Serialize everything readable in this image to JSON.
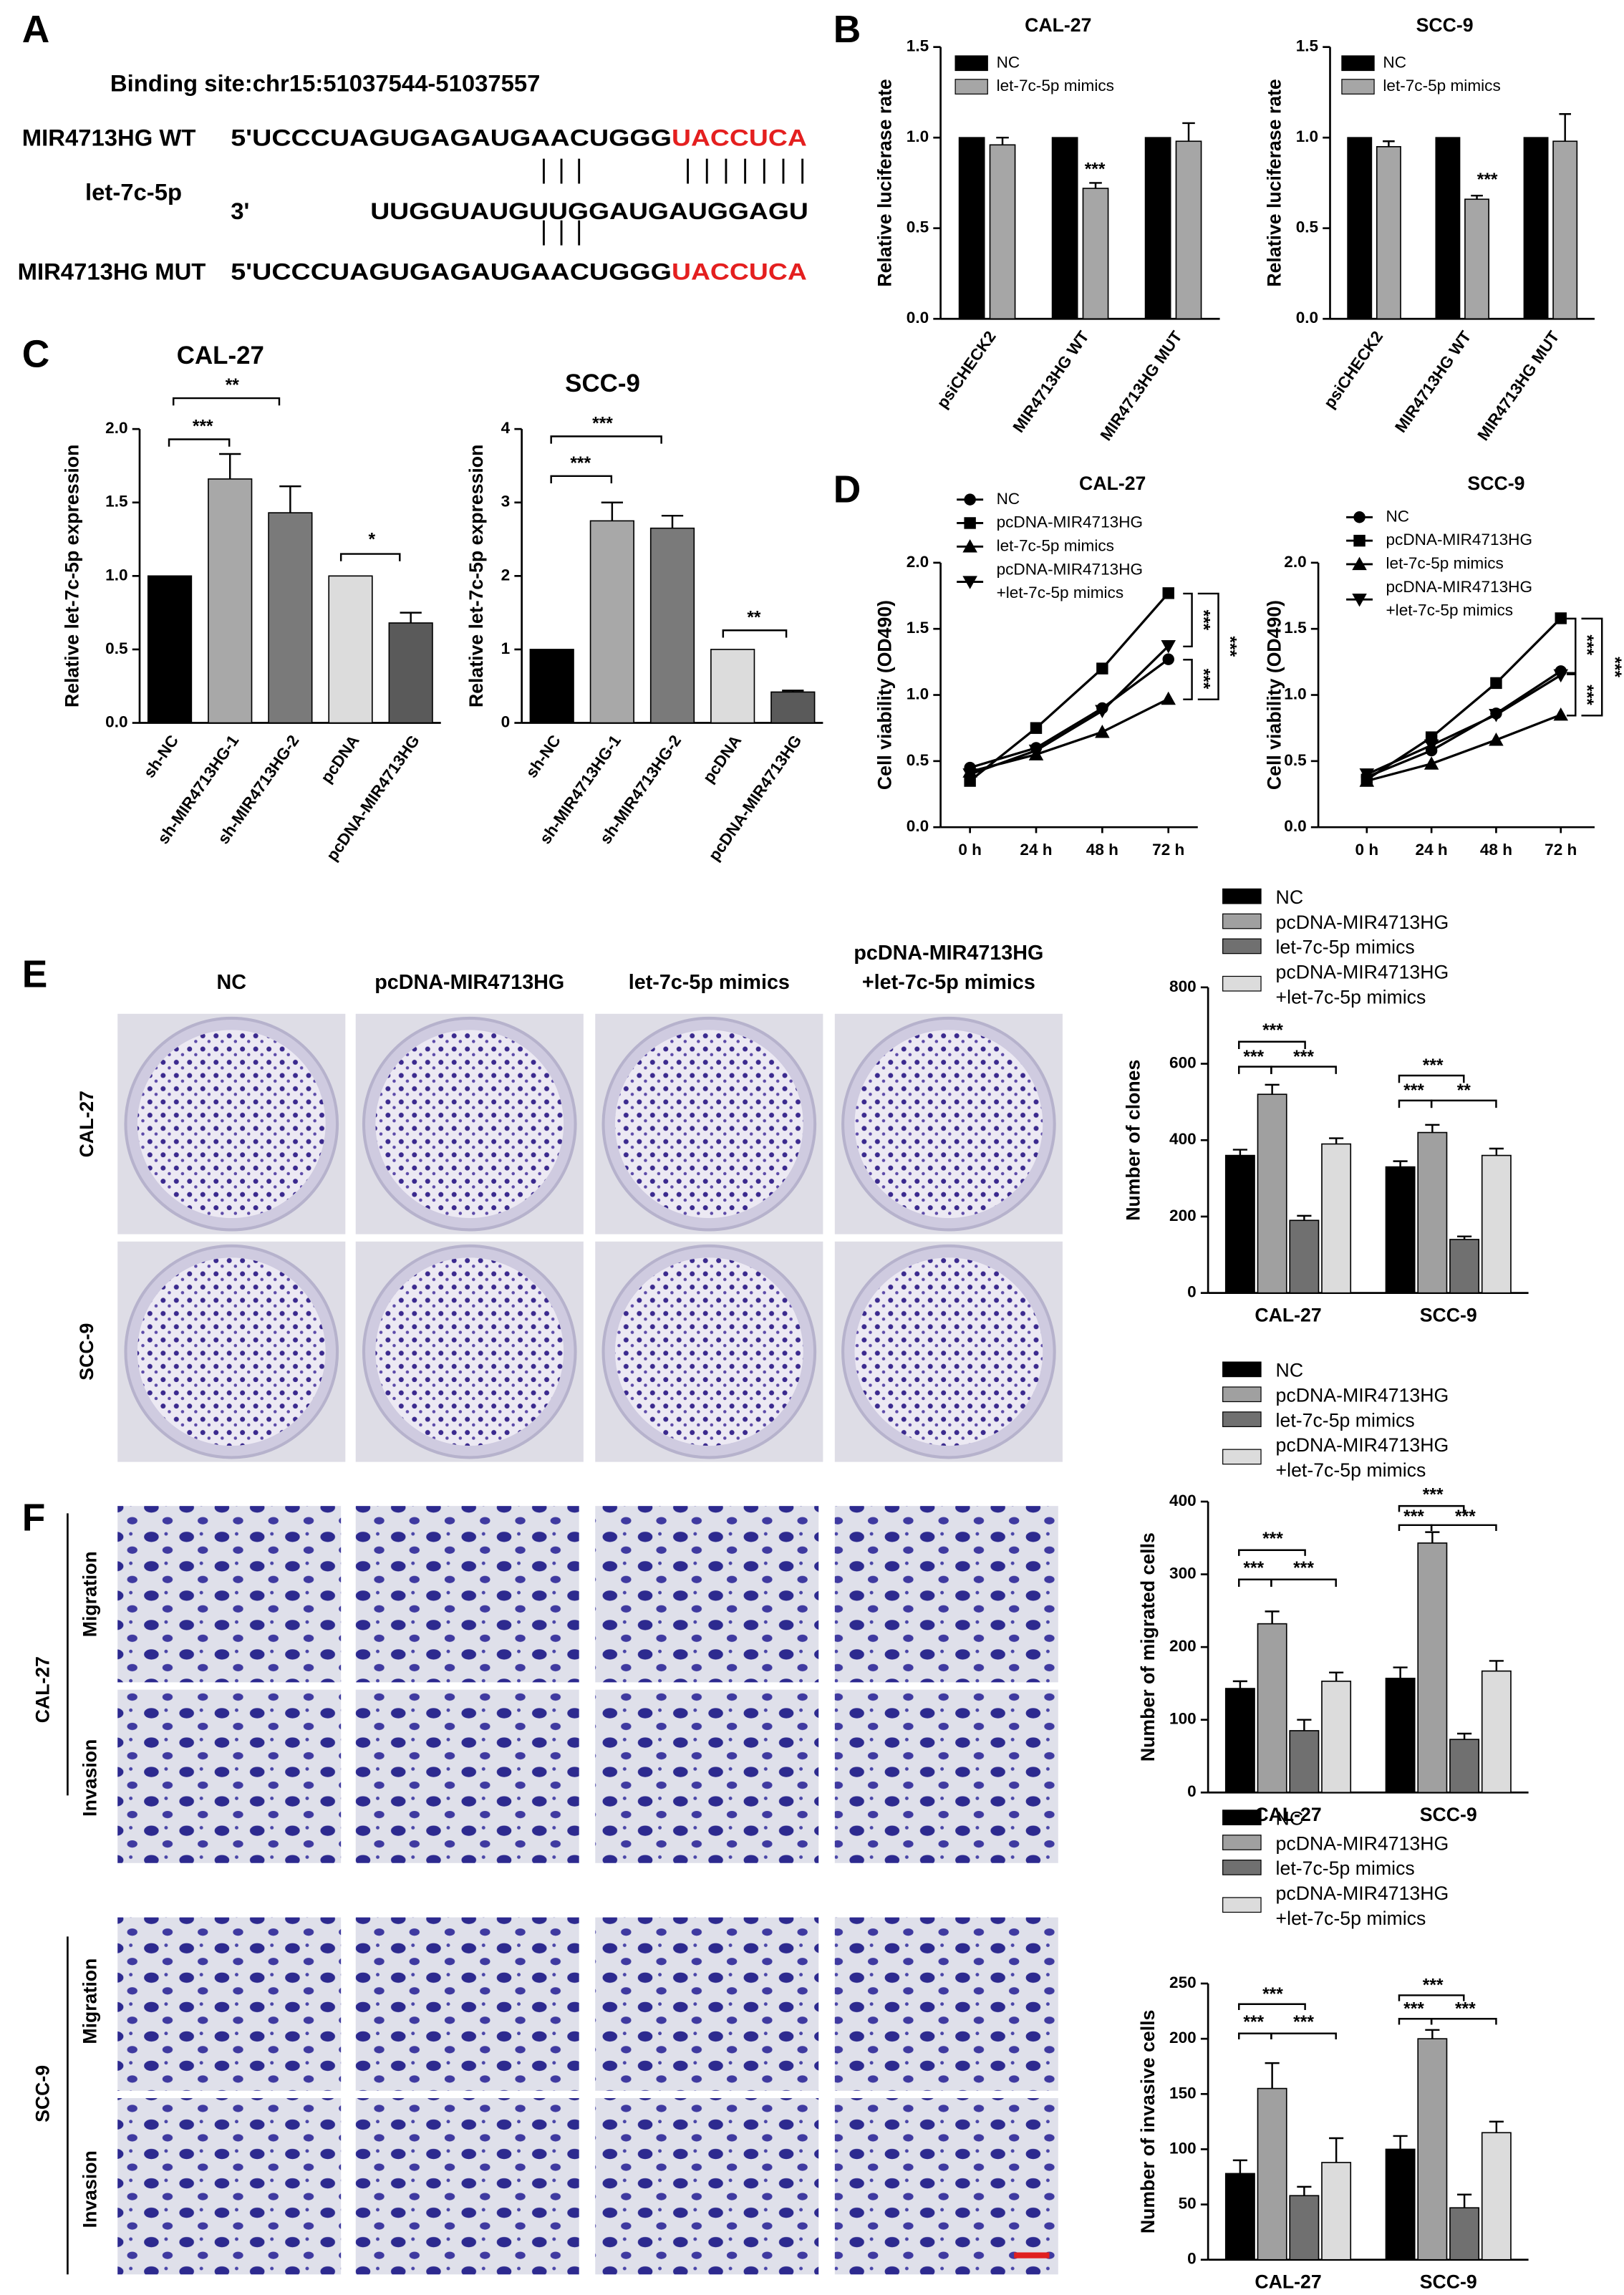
{
  "panel_labels": [
    "A",
    "B",
    "C",
    "D",
    "E",
    "F"
  ],
  "binding": {
    "title": "Binding site:chr15:51037544-51037557",
    "rows": [
      {
        "label": "MIR4713HG WT",
        "seq_a": "5'UCCCUAGUGAGAUGAACUGGG",
        "seq_b": "UACCUCA",
        "seq_b_color": "#e41f1f"
      },
      {
        "label": "let-7c-5p",
        "seq_a": "3'",
        "seq_b": "UUGGUAUGUUGGAUGAUGGAGU",
        "seq_b_color": "#000000"
      },
      {
        "label": "MIR4713HG MUT",
        "seq_a": "5'UCCCUAGUGAGAUGAACUGGG",
        "seq_b": "UACCUCA",
        "seq_b_color": "#e41f1f"
      }
    ]
  },
  "images": {
    "columns": [
      "NC",
      "pcDNA-MIR4713HG",
      "let-7c-5p mimics",
      "pcDNA-MIR4713HG\n+let-7c-5p mimics"
    ],
    "cell_lines": [
      "CAL-27",
      "SCC-9"
    ],
    "assays": [
      "Migration",
      "Invasion"
    ]
  },
  "chart_data": [
    {
      "type": "bar",
      "title": "CAL-27",
      "y_label": "Relative luciferase rate",
      "categories": [
        "psiCHECK2",
        "MIR4713HG WT",
        "MIR4713HG MUT"
      ],
      "series": [
        {
          "name": "NC",
          "color": "#000000",
          "values": [
            1,
            1,
            1
          ]
        },
        {
          "name": "let-7c-5p mimics",
          "color": "#a6a6a6",
          "values": [
            0.96,
            0.72,
            0.98
          ],
          "errors": [
            0.04,
            0.03,
            0.1
          ]
        }
      ],
      "ylim": [
        0,
        1.5
      ],
      "yticks": [
        {
          "value": 0,
          "label": "0.0"
        },
        0.5,
        {
          "value": 1,
          "label": "1.0"
        },
        1.5
      ],
      "annotations": [
        "***"
      ]
    },
    {
      "type": "bar",
      "title": "SCC-9",
      "y_label": "Relative luciferase rate",
      "categories": [
        "psiCHECK2",
        "MIR4713HG WT",
        "MIR4713HG MUT"
      ],
      "series": [
        {
          "name": "NC",
          "color": "#000000",
          "values": [
            1,
            1,
            1
          ]
        },
        {
          "name": "let-7c-5p mimics",
          "color": "#a6a6a6",
          "values": [
            0.95,
            0.66,
            0.98
          ],
          "errors": [
            0.03,
            0.02,
            0.15
          ]
        }
      ],
      "ylim": [
        0,
        1.5
      ],
      "yticks": [
        {
          "value": 0,
          "label": "0.0"
        },
        0.5,
        {
          "value": 1,
          "label": "1.0"
        },
        1.5
      ],
      "annotations": [
        "***"
      ]
    },
    {
      "type": "bar",
      "title": "CAL-27",
      "y_label": "Relative let-7c-5p expression",
      "categories": [
        "sh-NC",
        "sh-MIR4713HG-1",
        "sh-MIR4713HG-2",
        "pcDNA",
        "pcDNA-MIR4713HG"
      ],
      "values": [
        1,
        1.66,
        1.43,
        1,
        0.68
      ],
      "errors": [
        null,
        0.17,
        0.18,
        null,
        0.07
      ],
      "colors": [
        "#000000",
        "#a8a8a8",
        "#7a7a7a",
        "#dcdcdc",
        "#5a5a5a"
      ],
      "ylim": [
        0,
        2
      ],
      "yticks": [
        {
          "value": 0,
          "label": "0.0"
        },
        0.5,
        {
          "value": 1,
          "label": "1.0"
        },
        1.5,
        {
          "value": 2,
          "label": "2.0"
        }
      ],
      "annotations": [
        "***",
        "**",
        "*"
      ]
    },
    {
      "type": "bar",
      "title": "SCC-9",
      "y_label": "Relative let-7c-5p expression",
      "categories": [
        "sh-NC",
        "sh-MIR4713HG-1",
        "sh-MIR4713HG-2",
        "pcDNA",
        "pcDNA-MIR4713HG"
      ],
      "values": [
        1,
        2.75,
        2.65,
        1,
        0.42
      ],
      "errors": [
        null,
        0.25,
        0.17,
        null,
        0.02
      ],
      "colors": [
        "#000000",
        "#a8a8a8",
        "#7a7a7a",
        "#dcdcdc",
        "#5a5a5a"
      ],
      "ylim": [
        0,
        4
      ],
      "yticks": [
        0,
        1,
        2,
        3,
        4
      ],
      "annotations": [
        "***",
        "***",
        "**"
      ]
    },
    {
      "type": "line",
      "title": "CAL-27",
      "y_label": "Cell viability (OD490)",
      "categories": [
        "0 h",
        "24 h",
        "48 h",
        "72 h"
      ],
      "series": [
        {
          "name": "NC",
          "marker": "circle",
          "color": "#000000",
          "values": [
            0.45,
            0.6,
            0.9,
            1.27
          ]
        },
        {
          "name": "pcDNA-MIR4713HG",
          "marker": "square",
          "color": "#000000",
          "values": [
            0.35,
            0.75,
            1.2,
            1.77
          ]
        },
        {
          "name": "let-7c-5p mimics",
          "marker": "triangle",
          "color": "#000000",
          "values": [
            0.42,
            0.55,
            0.72,
            0.97
          ]
        },
        {
          "name": "pcDNA-MIR4713HG\n+let-7c-5p mimics",
          "marker": "triangle-down",
          "color": "#000000",
          "values": [
            0.4,
            0.58,
            0.88,
            1.37
          ]
        }
      ],
      "ylim": [
        0,
        2
      ],
      "yticks": [
        {
          "value": 0,
          "label": "0.0"
        },
        0.5,
        {
          "value": 1,
          "label": "1.0"
        },
        1.5,
        {
          "value": 2,
          "label": "2.0"
        }
      ],
      "annotations": [
        "***",
        "***",
        "***"
      ]
    },
    {
      "type": "line",
      "title": "SCC-9",
      "y_label": "Cell viability (OD490)",
      "categories": [
        "0 h",
        "24 h",
        "48 h",
        "72 h"
      ],
      "series": [
        {
          "name": "NC",
          "marker": "circle",
          "color": "#000000",
          "values": [
            0.38,
            0.58,
            0.86,
            1.18
          ]
        },
        {
          "name": "pcDNA-MIR4713HG",
          "marker": "square",
          "color": "#000000",
          "values": [
            0.36,
            0.68,
            1.09,
            1.58
          ]
        },
        {
          "name": "let-7c-5p mimics",
          "marker": "triangle",
          "color": "#000000",
          "values": [
            0.35,
            0.48,
            0.66,
            0.85
          ]
        },
        {
          "name": "pcDNA-MIR4713HG\n+let-7c-5p mimics",
          "marker": "triangle-down",
          "color": "#000000",
          "values": [
            0.4,
            0.62,
            0.85,
            1.15
          ]
        }
      ],
      "ylim": [
        0,
        2
      ],
      "yticks": [
        {
          "value": 0,
          "label": "0.0"
        },
        0.5,
        {
          "value": 1,
          "label": "1.0"
        },
        1.5,
        {
          "value": 2,
          "label": "2.0"
        }
      ],
      "annotations": [
        "***",
        "***",
        "***"
      ]
    },
    {
      "type": "bar",
      "y_label": "Number of clones",
      "categories": [
        "CAL-27",
        "SCC-9"
      ],
      "series": [
        {
          "name": "NC",
          "color": "#000000",
          "values": [
            360,
            330
          ],
          "errors": [
            15,
            15
          ]
        },
        {
          "name": "pcDNA-MIR4713HG",
          "color": "#a0a0a0",
          "values": [
            520,
            420
          ],
          "errors": [
            25,
            20
          ]
        },
        {
          "name": "let-7c-5p mimics",
          "color": "#707070",
          "values": [
            190,
            140
          ],
          "errors": [
            12,
            8
          ]
        },
        {
          "name": "pcDNA-MIR4713HG\n+let-7c-5p mimics",
          "color": "#dcdcdc",
          "values": [
            390,
            360
          ],
          "errors": [
            15,
            18
          ]
        }
      ],
      "ylim": [
        0,
        800
      ],
      "yticks": [
        0,
        200,
        400,
        600,
        800
      ],
      "annotations": [
        "***",
        "***",
        "***",
        "***",
        "***",
        "**"
      ]
    },
    {
      "type": "bar",
      "y_label": "Number of migrated cells",
      "categories": [
        "CAL-27",
        "SCC-9"
      ],
      "series": [
        {
          "name": "NC",
          "color": "#000000",
          "values": [
            143,
            157
          ],
          "errors": [
            10,
            15
          ]
        },
        {
          "name": "pcDNA-MIR4713HG",
          "color": "#a0a0a0",
          "values": [
            232,
            343
          ],
          "errors": [
            17,
            15
          ]
        },
        {
          "name": "let-7c-5p mimics",
          "color": "#707070",
          "values": [
            85,
            73
          ],
          "errors": [
            15,
            8
          ]
        },
        {
          "name": "pcDNA-MIR4713HG\n+let-7c-5p mimics",
          "color": "#dcdcdc",
          "values": [
            153,
            167
          ],
          "errors": [
            12,
            14
          ]
        }
      ],
      "ylim": [
        0,
        400
      ],
      "yticks": [
        0,
        100,
        200,
        300,
        400
      ],
      "annotations": [
        "***",
        "***",
        "***",
        "***",
        "***",
        "***"
      ]
    },
    {
      "type": "bar",
      "y_label": "Number of invasive cells",
      "categories": [
        "CAL-27",
        "SCC-9"
      ],
      "series": [
        {
          "name": "NC",
          "color": "#000000",
          "values": [
            78,
            100
          ],
          "errors": [
            12,
            12
          ]
        },
        {
          "name": "pcDNA-MIR4713HG",
          "color": "#a0a0a0",
          "values": [
            155,
            200
          ],
          "errors": [
            23,
            8
          ]
        },
        {
          "name": "let-7c-5p mimics",
          "color": "#707070",
          "values": [
            58,
            47
          ],
          "errors": [
            8,
            12
          ]
        },
        {
          "name": "pcDNA-MIR4713HG\n+let-7c-5p mimics",
          "color": "#dcdcdc",
          "values": [
            88,
            115
          ],
          "errors": [
            22,
            10
          ]
        }
      ],
      "ylim": [
        0,
        250
      ],
      "yticks": [
        0,
        50,
        100,
        150,
        200,
        250
      ],
      "annotations": [
        "***",
        "***",
        "***",
        "***",
        "***",
        "***"
      ]
    }
  ]
}
